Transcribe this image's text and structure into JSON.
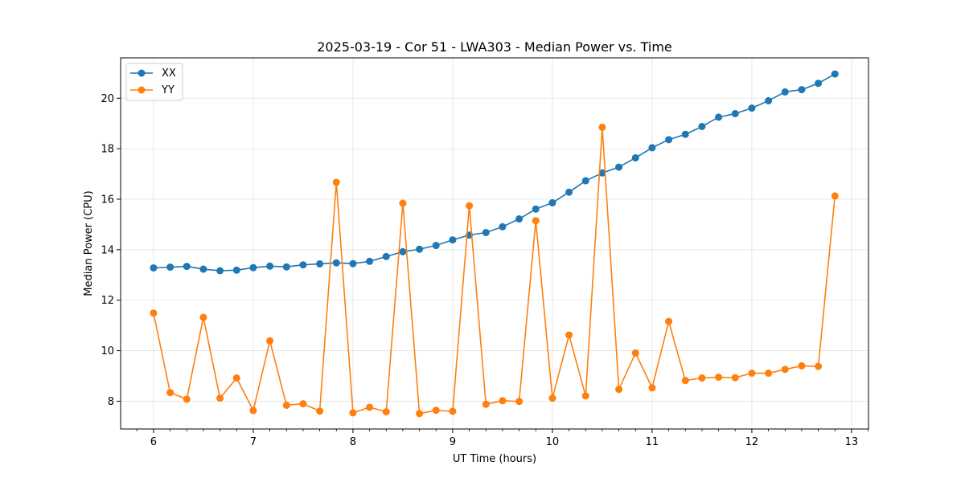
{
  "chart_data": {
    "type": "line",
    "title": "2025-03-19 - Cor 51 - LWA303 - Median Power vs. Time",
    "xlabel": "UT Time (hours)",
    "ylabel": "Median Power (CPU)",
    "xlim": [
      5.67,
      13.17
    ],
    "ylim": [
      6.9,
      21.6
    ],
    "xticks": [
      6,
      7,
      8,
      9,
      10,
      11,
      12,
      13
    ],
    "xticks_minor": [
      5.6667,
      5.8333,
      6.1667,
      6.3333,
      6.5,
      6.6667,
      6.8333,
      7.1667,
      7.3333,
      7.5,
      7.6667,
      7.8333,
      8.1667,
      8.3333,
      8.5,
      8.6667,
      8.8333,
      9.1667,
      9.3333,
      9.5,
      9.6667,
      9.8333,
      10.1667,
      10.3333,
      10.5,
      10.6667,
      10.8333,
      11.1667,
      11.3333,
      11.5,
      11.6667,
      11.8333,
      12.1667,
      12.3333,
      12.5,
      12.6667,
      12.8333,
      13.1667
    ],
    "yticks": [
      8,
      10,
      12,
      14,
      16,
      18,
      20
    ],
    "grid": true,
    "legend_position": "upper-left",
    "x": [
      6.0,
      6.1667,
      6.3333,
      6.5,
      6.6667,
      6.8333,
      7.0,
      7.1667,
      7.3333,
      7.5,
      7.6667,
      7.8333,
      8.0,
      8.1667,
      8.3333,
      8.5,
      8.6667,
      8.8333,
      9.0,
      9.1667,
      9.3333,
      9.5,
      9.6667,
      9.8333,
      10.0,
      10.1667,
      10.3333,
      10.5,
      10.6667,
      10.8333,
      11.0,
      11.1667,
      11.3333,
      11.5,
      11.6667,
      11.8333,
      12.0,
      12.1667,
      12.3333,
      12.5,
      12.6667,
      12.8333
    ],
    "series": [
      {
        "name": "XX",
        "color": "#1f77b4",
        "values": [
          13.28,
          13.31,
          13.34,
          13.23,
          13.17,
          13.19,
          13.29,
          13.35,
          13.32,
          13.4,
          13.44,
          13.48,
          13.45,
          13.54,
          13.73,
          13.92,
          14.02,
          14.17,
          14.39,
          14.58,
          14.68,
          14.91,
          15.22,
          15.61,
          15.86,
          16.28,
          16.73,
          17.04,
          17.27,
          17.64,
          18.04,
          18.36,
          18.57,
          18.88,
          19.25,
          19.39,
          19.61,
          19.9,
          20.25,
          20.34,
          20.59,
          20.96
        ]
      },
      {
        "name": "YY",
        "color": "#ff7f0e",
        "values": [
          11.49,
          8.34,
          8.08,
          11.32,
          8.12,
          8.92,
          7.63,
          10.39,
          7.84,
          7.9,
          7.61,
          16.67,
          7.54,
          7.76,
          7.58,
          15.84,
          7.51,
          7.64,
          7.6,
          15.74,
          7.88,
          8.02,
          7.99,
          15.15,
          8.12,
          10.62,
          8.21,
          18.85,
          8.47,
          9.91,
          8.53,
          11.16,
          8.82,
          8.92,
          8.95,
          8.93,
          9.11,
          9.11,
          9.26,
          9.4,
          9.38,
          16.13
        ]
      }
    ]
  }
}
